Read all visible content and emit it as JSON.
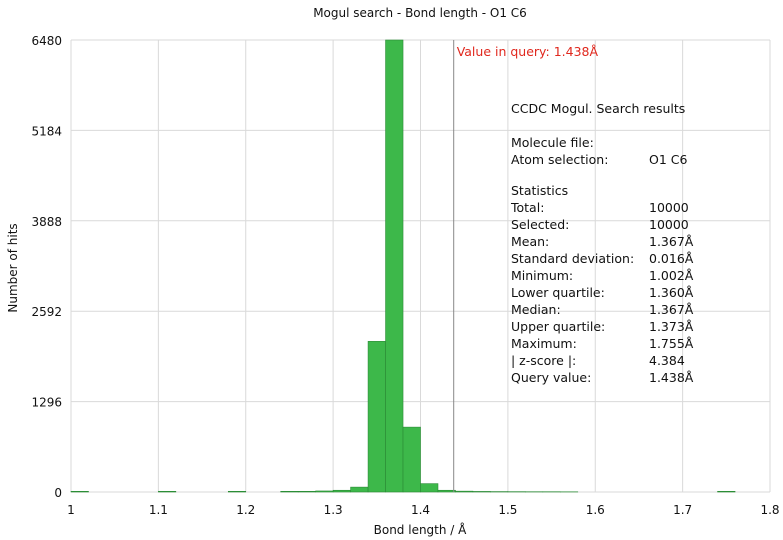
{
  "chart_data": {
    "type": "bar",
    "title": "Mogul search - Bond length - O1 C6",
    "xlabel": "Bond length / Å",
    "ylabel": "Number of hits",
    "xlim": [
      1.0,
      1.8
    ],
    "ylim": [
      0,
      6480
    ],
    "x_ticks": [
      "1",
      "1.1",
      "1.2",
      "1.3",
      "1.4",
      "1.5",
      "1.6",
      "1.7",
      "1.8"
    ],
    "y_ticks": [
      "0",
      "1296",
      "2592",
      "3888",
      "5184",
      "6480"
    ],
    "bin_width": 0.02,
    "bars": [
      {
        "x": 1.0,
        "value": 10
      },
      {
        "x": 1.1,
        "value": 10
      },
      {
        "x": 1.18,
        "value": 10
      },
      {
        "x": 1.24,
        "value": 10
      },
      {
        "x": 1.26,
        "value": 10
      },
      {
        "x": 1.28,
        "value": 15
      },
      {
        "x": 1.3,
        "value": 25
      },
      {
        "x": 1.32,
        "value": 70
      },
      {
        "x": 1.34,
        "value": 2160
      },
      {
        "x": 1.36,
        "value": 6480
      },
      {
        "x": 1.38,
        "value": 930
      },
      {
        "x": 1.4,
        "value": 120
      },
      {
        "x": 1.42,
        "value": 25
      },
      {
        "x": 1.44,
        "value": 12
      },
      {
        "x": 1.46,
        "value": 8
      },
      {
        "x": 1.48,
        "value": 6
      },
      {
        "x": 1.5,
        "value": 5
      },
      {
        "x": 1.52,
        "value": 4
      },
      {
        "x": 1.54,
        "value": 4
      },
      {
        "x": 1.56,
        "value": 3
      },
      {
        "x": 1.74,
        "value": 10
      }
    ],
    "query_value": 1.438,
    "query_label": "Value in query: 1.438Å",
    "colors": {
      "bar_fill": "#3db84a",
      "bar_edge": "#2a8a35",
      "query_text": "#e0281e",
      "query_line": "#888888",
      "grid": "#d9d9d9"
    },
    "grid": true
  },
  "stats_panel": {
    "header": "CCDC Mogul.  Search results",
    "molecule_file_label": "Molecule file:",
    "atom_selection_label": "Atom selection:",
    "atom_selection_value": "O1 C6",
    "statistics_label": "Statistics",
    "rows": [
      {
        "label": "Total:",
        "value": "10000"
      },
      {
        "label": "Selected:",
        "value": "10000"
      },
      {
        "label": "Mean:",
        "value": "1.367Å"
      },
      {
        "label": "Standard deviation:",
        "value": "0.016Å"
      },
      {
        "label": "Minimum:",
        "value": "1.002Å"
      },
      {
        "label": "Lower quartile:",
        "value": "1.360Å"
      },
      {
        "label": "Median:",
        "value": "1.367Å"
      },
      {
        "label": "Upper quartile:",
        "value": "1.373Å"
      },
      {
        "label": "Maximum:",
        "value": "1.755Å"
      },
      {
        "label": "| z-score |:",
        "value": "4.384"
      },
      {
        "label": "Query value:",
        "value": "1.438Å"
      }
    ]
  }
}
